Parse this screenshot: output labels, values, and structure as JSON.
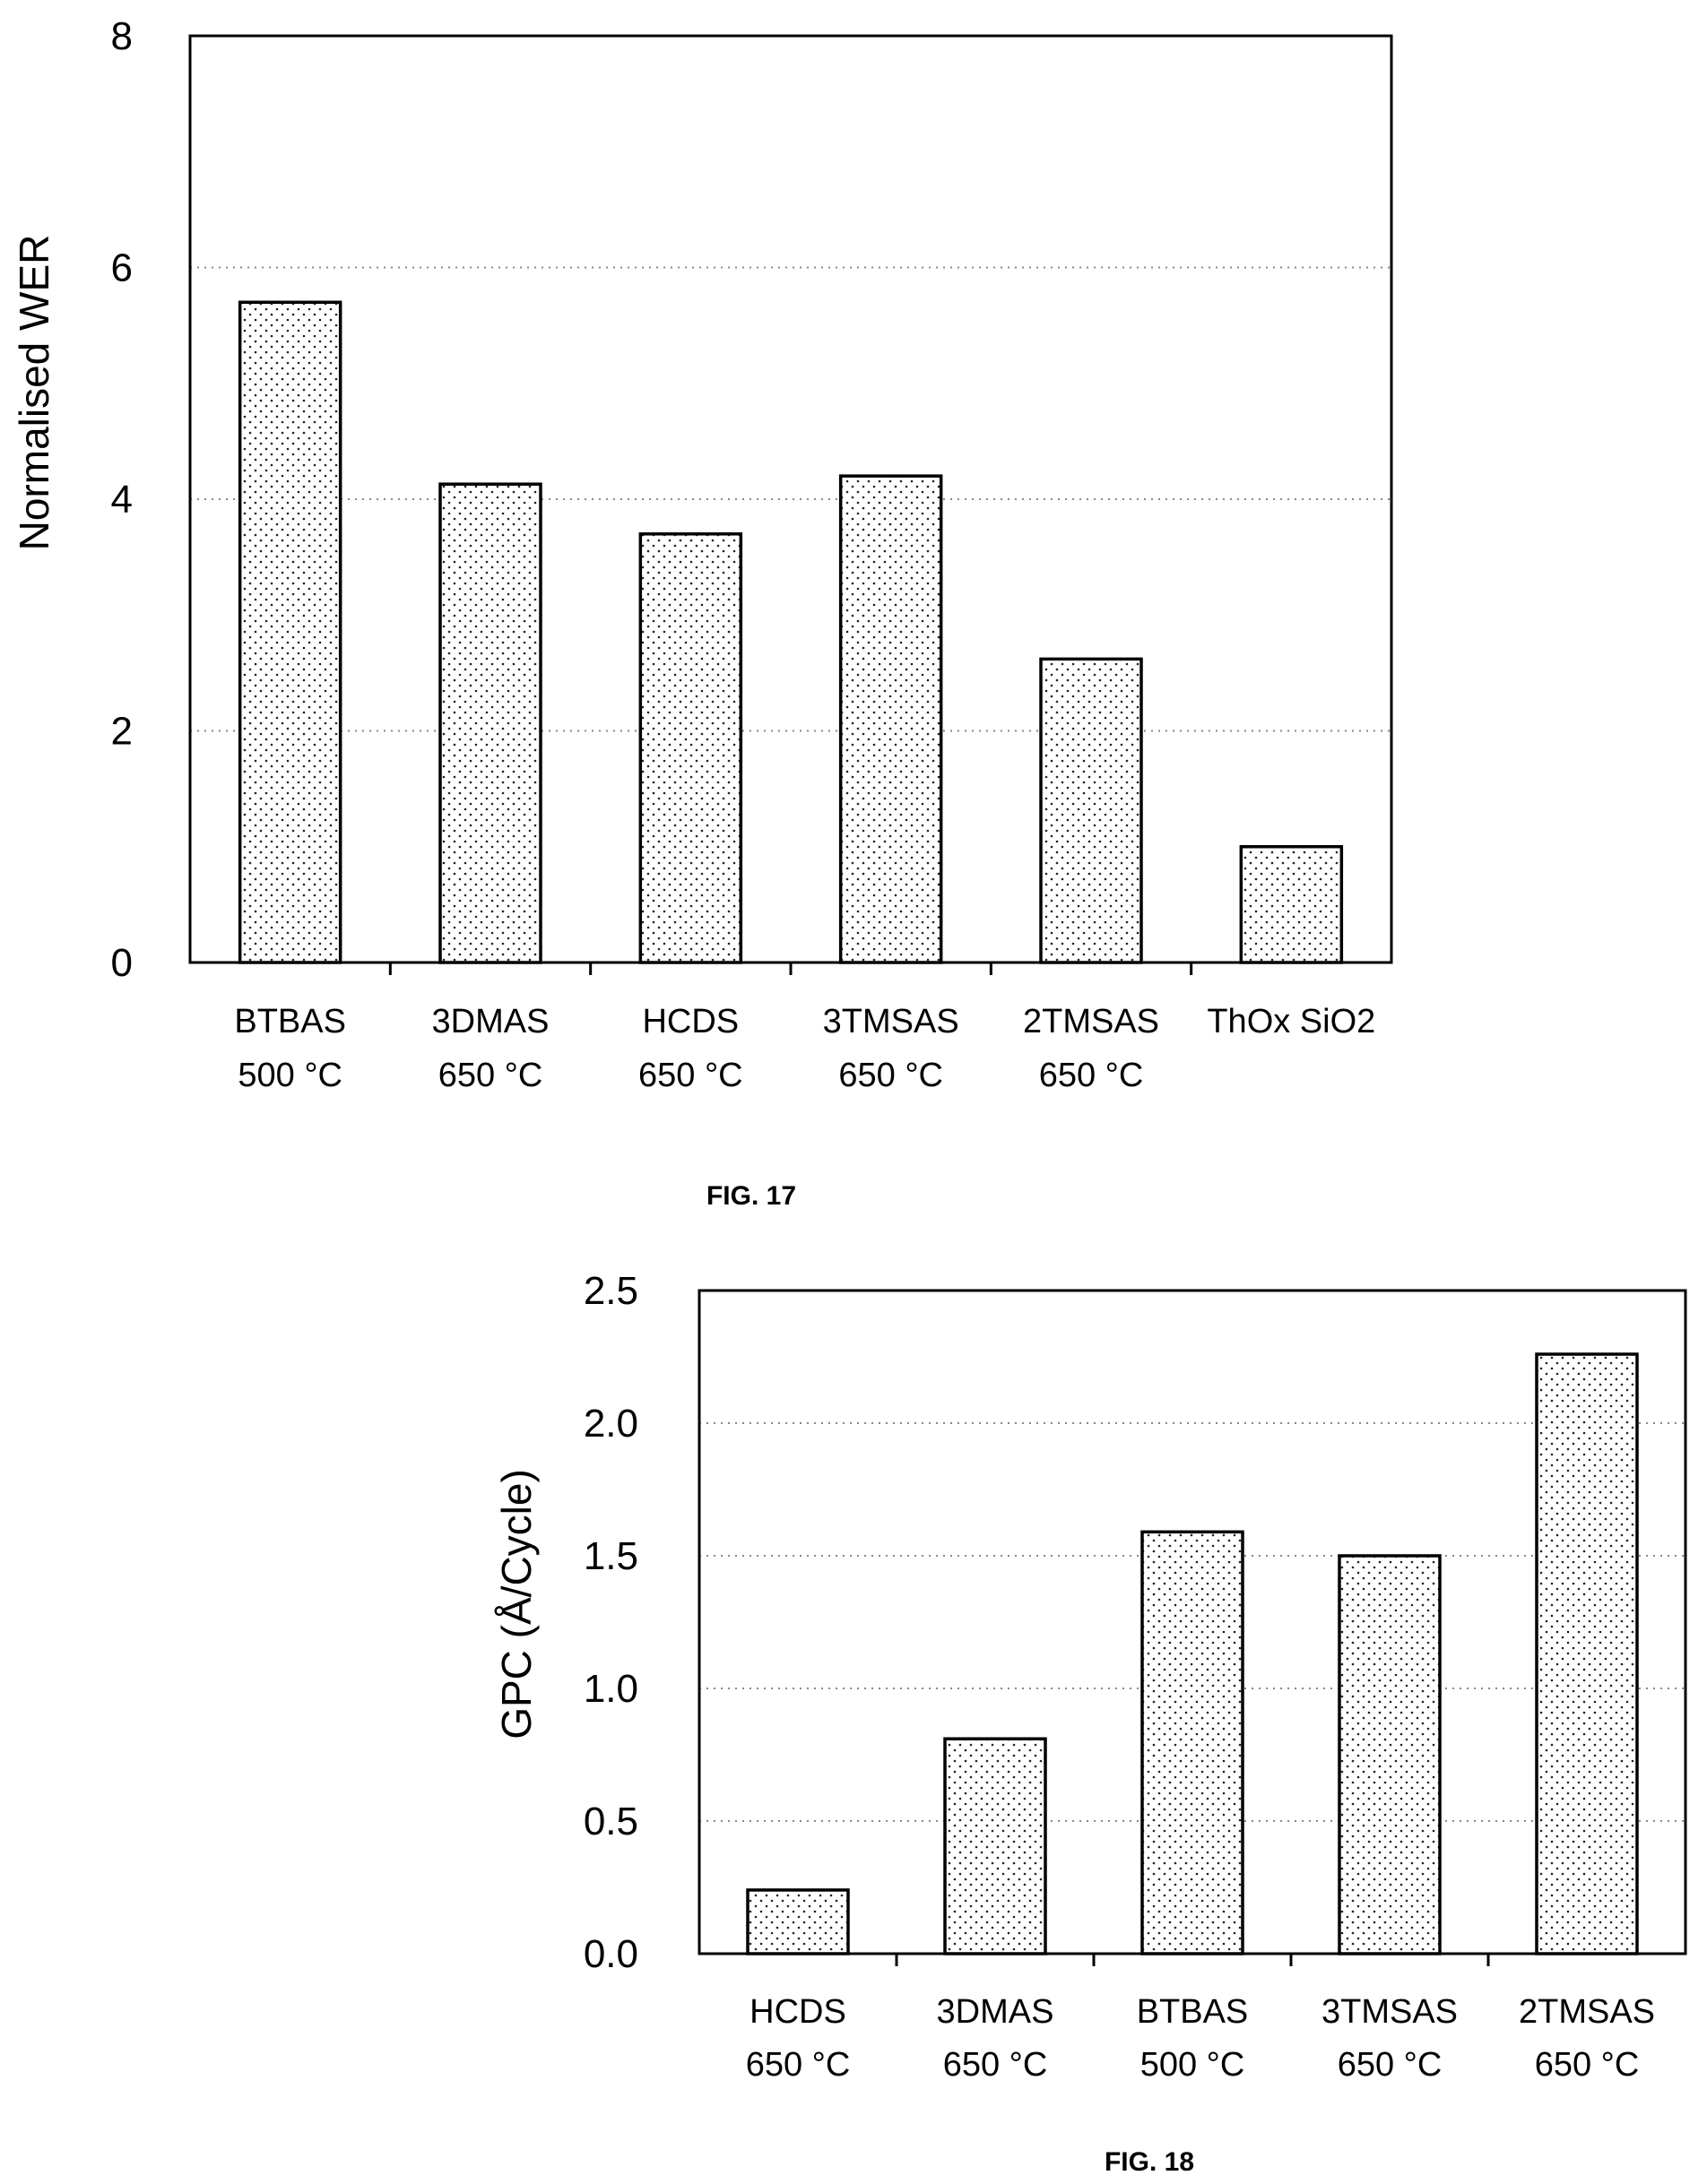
{
  "chart_data": [
    {
      "type": "bar",
      "title": "",
      "xlabel": "",
      "ylabel": "Normalised WER",
      "ylim": [
        0,
        8
      ],
      "yticks": [
        "0",
        "2",
        "4",
        "6",
        "8"
      ],
      "grid": true,
      "categories": [
        [
          "BTBAS",
          "500 °C"
        ],
        [
          "3DMAS",
          "650 °C"
        ],
        [
          "HCDS",
          "650 °C"
        ],
        [
          "3TMSAS",
          "650 °C"
        ],
        [
          "2TMSAS",
          "650 °C"
        ],
        [
          "ThOx SiO2",
          ""
        ]
      ],
      "values": [
        5.7,
        4.13,
        3.7,
        4.2,
        2.62,
        1.0
      ],
      "caption": "FIG. 17"
    },
    {
      "type": "bar",
      "title": "",
      "xlabel": "",
      "ylabel": "GPC (Å/Cycle)",
      "ylim": [
        0,
        2.5
      ],
      "yticks": [
        "0.0",
        "0.5",
        "1.0",
        "1.5",
        "2.0",
        "2.5"
      ],
      "grid": true,
      "categories": [
        [
          "HCDS",
          "650 °C"
        ],
        [
          "3DMAS",
          "650 °C"
        ],
        [
          "BTBAS",
          "500 °C"
        ],
        [
          "3TMSAS",
          "650 °C"
        ],
        [
          "2TMSAS",
          "650 °C"
        ]
      ],
      "values": [
        0.24,
        0.81,
        1.59,
        1.5,
        2.26
      ],
      "caption": "FIG. 18"
    }
  ]
}
